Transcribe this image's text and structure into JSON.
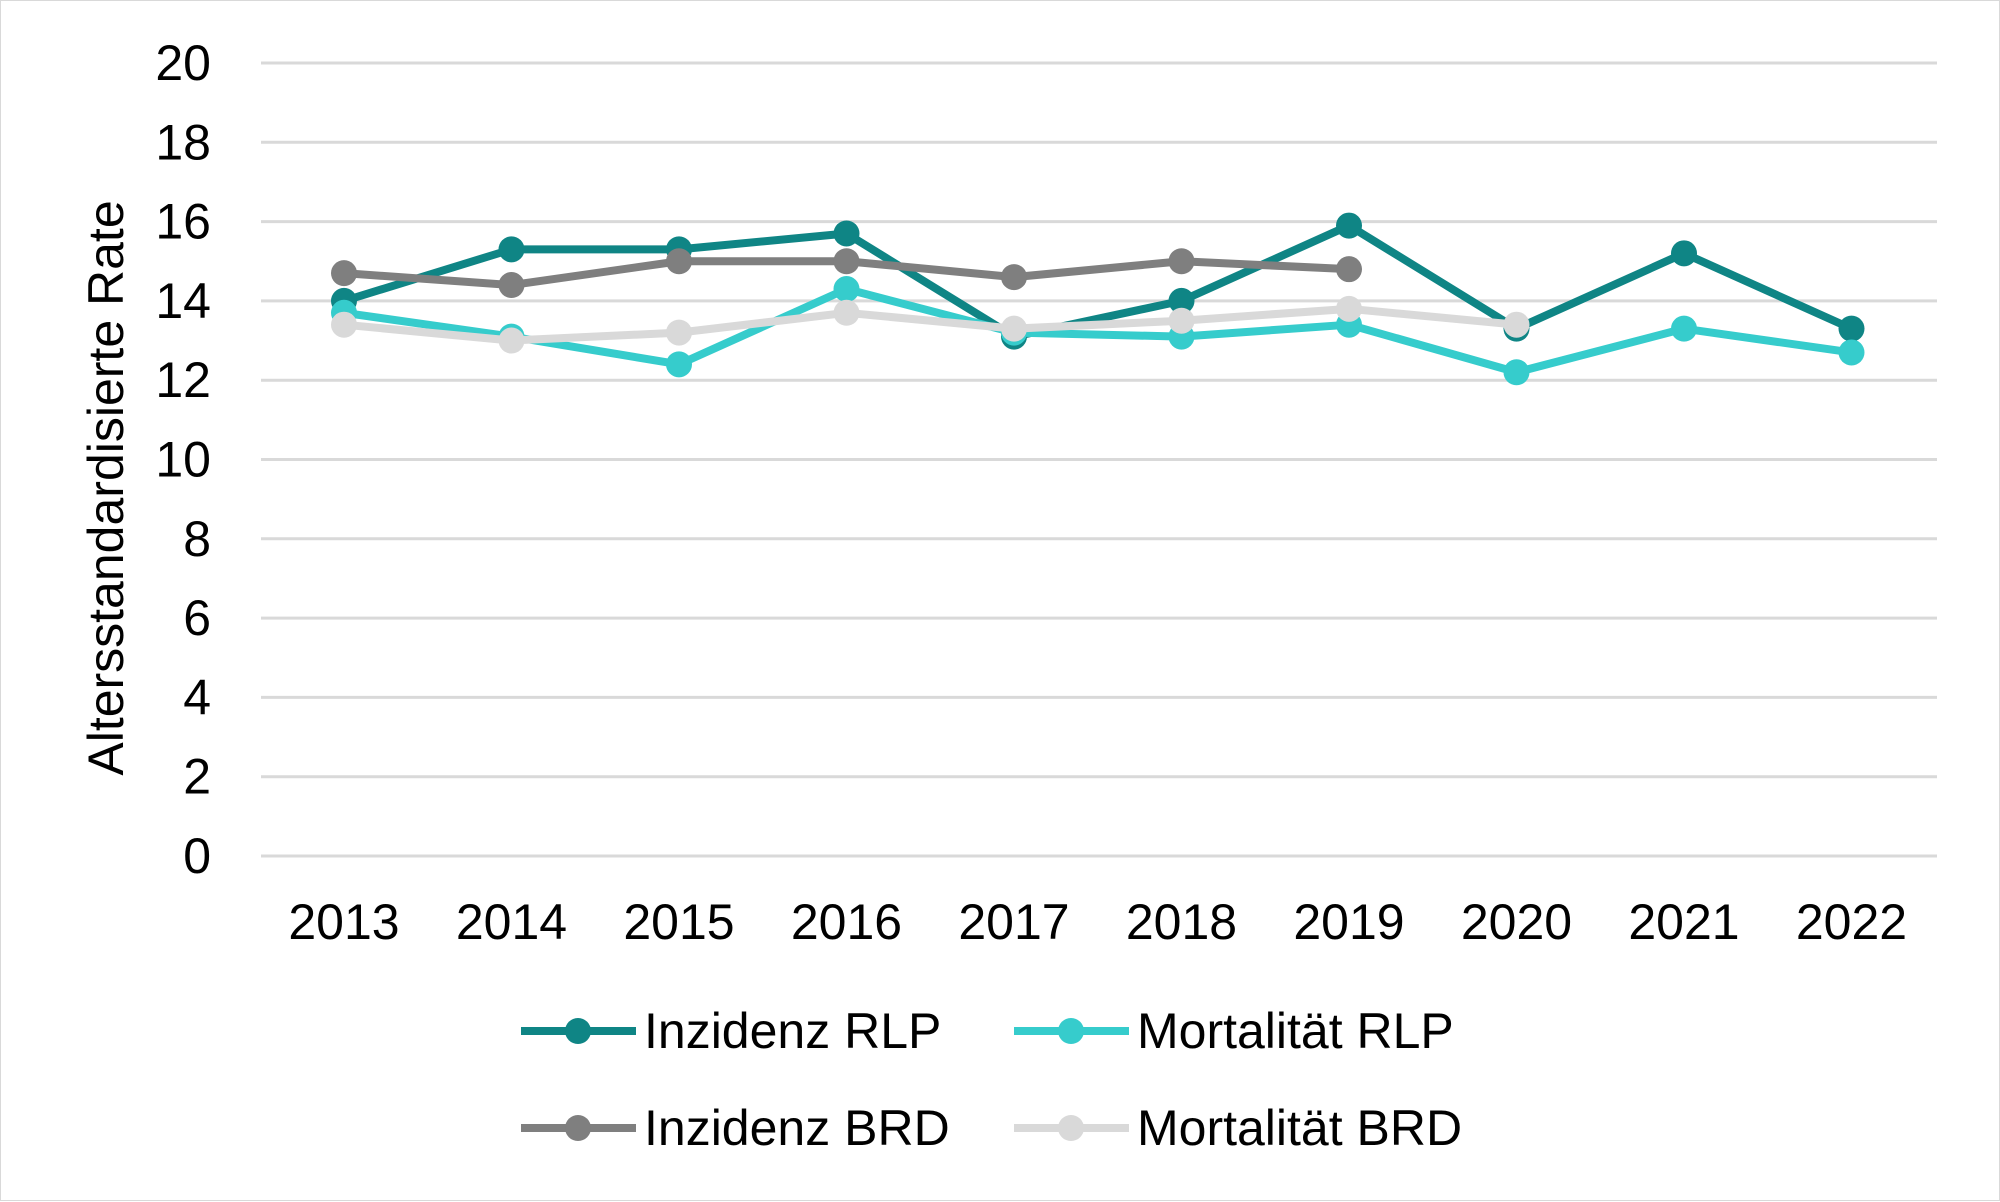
{
  "chart_data": {
    "type": "line",
    "title": "",
    "xlabel": "",
    "ylabel": "Altersstandardisierte Rate",
    "ylim": [
      0,
      20
    ],
    "yticks": [
      0,
      2,
      4,
      6,
      8,
      10,
      12,
      14,
      16,
      18,
      20
    ],
    "categories": [
      "2013",
      "2014",
      "2015",
      "2016",
      "2017",
      "2018",
      "2019",
      "2020",
      "2021",
      "2022"
    ],
    "grid": "horizontal",
    "legend_position": "bottom",
    "series": [
      {
        "name": "Inzidenz RLP",
        "color": "#0f8585",
        "values": [
          14.0,
          15.3,
          15.3,
          15.7,
          13.1,
          14.0,
          15.9,
          13.3,
          15.2,
          13.3
        ]
      },
      {
        "name": "Mortalität RLP",
        "color": "#36cccc",
        "values": [
          13.7,
          13.1,
          12.4,
          14.3,
          13.2,
          13.1,
          13.4,
          12.2,
          13.3,
          12.7
        ]
      },
      {
        "name": "Inzidenz BRD",
        "color": "#7f7f7f",
        "values": [
          14.7,
          14.4,
          15.0,
          15.0,
          14.6,
          15.0,
          14.8,
          null,
          null,
          null
        ]
      },
      {
        "name": "Mortalität BRD",
        "color": "#d9d9d9",
        "values": [
          13.4,
          13.0,
          13.2,
          13.7,
          13.3,
          13.5,
          13.8,
          13.4,
          null,
          null
        ]
      }
    ]
  }
}
